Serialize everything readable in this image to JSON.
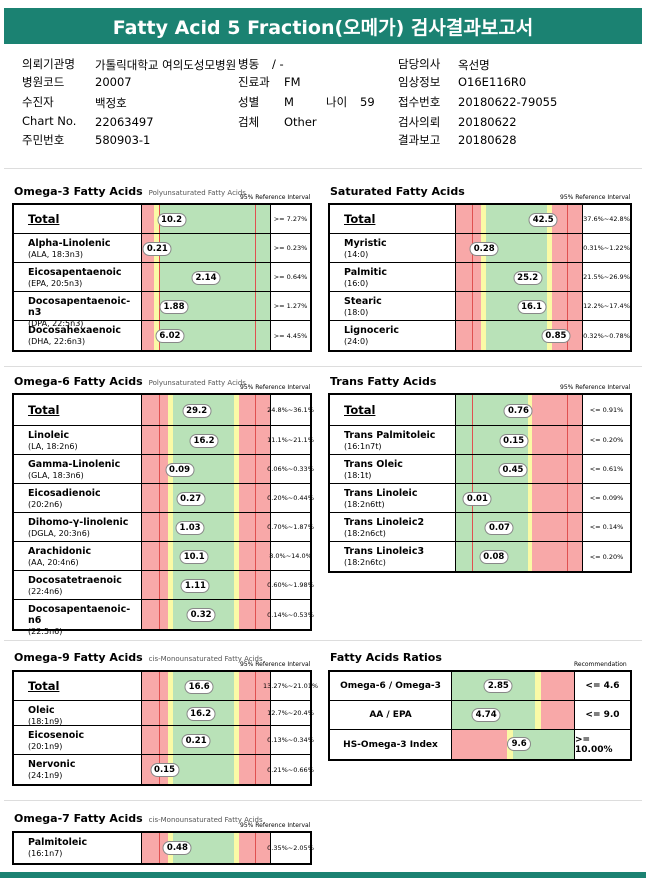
{
  "title": "Fatty Acid 5 Fraction(오메가) 검사결과보고서",
  "patient": {
    "institution_label": "의뢰기관명",
    "institution": "가톨릭대학교 여의도성모병원",
    "ward_label": "병동",
    "ward": "/ -",
    "doctor_label": "담당의사",
    "doctor": "옥선명",
    "hospital_code_label": "병원코드",
    "hospital_code": "20007",
    "dept_label": "진료과",
    "dept": "FM",
    "clinical_label": "임상정보",
    "clinical": "O16E116R0",
    "collector_label": "수진자",
    "collector": "백정호",
    "sex_label": "성별",
    "sex": "M",
    "age_label": "나이",
    "age": "59",
    "receipt_label": "접수번호",
    "receipt": "20180622-79055",
    "chart_label": "Chart No.",
    "chart": "22063497",
    "test_label": "검체",
    "test": "Other",
    "request_label": "검사의뢰",
    "request": "20180622",
    "resident_label": "주민번호",
    "resident": "580903-1",
    "report_label": "결과보고",
    "report": "20180628"
  },
  "colors": {
    "red": "#f8a8a8",
    "green": "#b9e2b8",
    "yellow": "#fafaa6",
    "teal": "#1b8272"
  },
  "ref_header": "95% Reference Interval",
  "rec_header": "Recommendation",
  "sections": [
    {
      "id": "omega3",
      "title": "Omega-3 Fatty Acids",
      "subtitle": "Polyunsaturated Fatty Acids",
      "rows": [
        {
          "name": "Total",
          "sub": "",
          "value": "10.2",
          "ref": ">= 7.27%",
          "total": true
        },
        {
          "name": "Alpha-Linolenic",
          "sub": "(ALA, 18:3n3)",
          "value": "0.21",
          "ref": ">= 0.23%"
        },
        {
          "name": "Eicosapentaenoic",
          "sub": "(EPA, 20:5n3)",
          "value": "2.14",
          "ref": ">= 0.64%"
        },
        {
          "name": "Docosapentaenoic-n3",
          "sub": "(DPA, 22:5n3)",
          "value": "1.88",
          "ref": ">= 1.27%"
        },
        {
          "name": "Docosahexaenoic",
          "sub": "(DHA, 22:6n3)",
          "value": "6.02",
          "ref": ">= 4.45%"
        }
      ]
    },
    {
      "id": "saturated",
      "title": "Saturated Fatty Acids",
      "subtitle": "",
      "rows": [
        {
          "name": "Total",
          "sub": "",
          "value": "42.5",
          "ref": "37.6%~42.8%",
          "total": true
        },
        {
          "name": "Myristic",
          "sub": "(14:0)",
          "value": "0.28",
          "ref": "0.31%~1.22%"
        },
        {
          "name": "Palmitic",
          "sub": "(16:0)",
          "value": "25.2",
          "ref": "21.5%~26.9%"
        },
        {
          "name": "Stearic",
          "sub": "(18:0)",
          "value": "16.1",
          "ref": "12.2%~17.4%"
        },
        {
          "name": "Lignoceric",
          "sub": "(24:0)",
          "value": "0.85",
          "ref": "0.32%~0.78%"
        }
      ]
    },
    {
      "id": "omega6",
      "title": "Omega-6 Fatty Acids",
      "subtitle": "Polyunsaturated Fatty Acids",
      "rows": [
        {
          "name": "Total",
          "sub": "",
          "value": "29.2",
          "ref": "24.8%~36.1%",
          "total": true
        },
        {
          "name": "Linoleic",
          "sub": "(LA, 18:2n6)",
          "value": "16.2",
          "ref": "11.1%~21.1%"
        },
        {
          "name": "Gamma-Linolenic",
          "sub": "(GLA, 18:3n6)",
          "value": "0.09",
          "ref": "0.06%~0.33%"
        },
        {
          "name": "Eicosadienoic",
          "sub": "(20:2n6)",
          "value": "0.27",
          "ref": "0.20%~0.44%"
        },
        {
          "name": "Dihomo-γ-linolenic",
          "sub": "(DGLA, 20:3n6)",
          "value": "1.03",
          "ref": "0.70%~1.87%"
        },
        {
          "name": "Arachidonic",
          "sub": "(AA, 20:4n6)",
          "value": "10.1",
          "ref": "8.0%~14.0%"
        },
        {
          "name": "Docosatetraenoic",
          "sub": "(22:4n6)",
          "value": "1.11",
          "ref": "0.60%~1.98%"
        },
        {
          "name": "Docosapentaenoic-n6",
          "sub": "(22:5n6)",
          "value": "0.32",
          "ref": "0.14%~0.53%"
        }
      ]
    },
    {
      "id": "trans",
      "title": "Trans Fatty Acids",
      "subtitle": "",
      "rows": [
        {
          "name": "Total",
          "sub": "",
          "value": "0.76",
          "ref": "<= 0.91%",
          "total": true
        },
        {
          "name": "Trans Palmitoleic",
          "sub": "(16:1n7t)",
          "value": "0.15",
          "ref": "<= 0.20%"
        },
        {
          "name": "Trans Oleic",
          "sub": "(18:1t)",
          "value": "0.45",
          "ref": "<= 0.61%"
        },
        {
          "name": "Trans Linoleic",
          "sub": "(18:2n6tt)",
          "value": "0.01",
          "ref": "<= 0.09%"
        },
        {
          "name": "Trans Linoleic2",
          "sub": "(18:2n6ct)",
          "value": "0.07",
          "ref": "<= 0.14%"
        },
        {
          "name": "Trans Linoleic3",
          "sub": "(18:2n6tc)",
          "value": "0.08",
          "ref": "<= 0.20%"
        }
      ]
    },
    {
      "id": "omega9",
      "title": "Omega-9 Fatty Acids",
      "subtitle": "cis-Monounsaturated Fatty Acids",
      "rows": [
        {
          "name": "Total",
          "sub": "",
          "value": "16.6",
          "ref": "13.27%~21.01%",
          "total": true
        },
        {
          "name": "Oleic",
          "sub": "(18:1n9)",
          "value": "16.2",
          "ref": "12.7%~20.4%"
        },
        {
          "name": "Eicosenoic",
          "sub": "(20:1n9)",
          "value": "0.21",
          "ref": "0.13%~0.34%"
        },
        {
          "name": "Nervonic",
          "sub": "(24:1n9)",
          "value": "0.15",
          "ref": "0.21%~0.66%"
        }
      ]
    },
    {
      "id": "omega7",
      "title": "Omega-7 Fatty Acids",
      "subtitle": "cis-Monounsaturated Fatty Acids",
      "rows": [
        {
          "name": "Palmitoleic",
          "sub": "(16:1n7)",
          "value": "0.48",
          "ref": "0.35%~2.05%"
        }
      ]
    }
  ],
  "ratios": {
    "title": "Fatty Acids Ratios",
    "rows": [
      {
        "name": "Omega-6 / Omega-3",
        "value": "2.85",
        "rec": "<= 4.6"
      },
      {
        "name": "AA / EPA",
        "value": "4.74",
        "rec": "<= 9.0"
      },
      {
        "name": "HS-Omega-3 Index",
        "value": "9.6",
        "rec": ">= 10.00%"
      }
    ]
  }
}
